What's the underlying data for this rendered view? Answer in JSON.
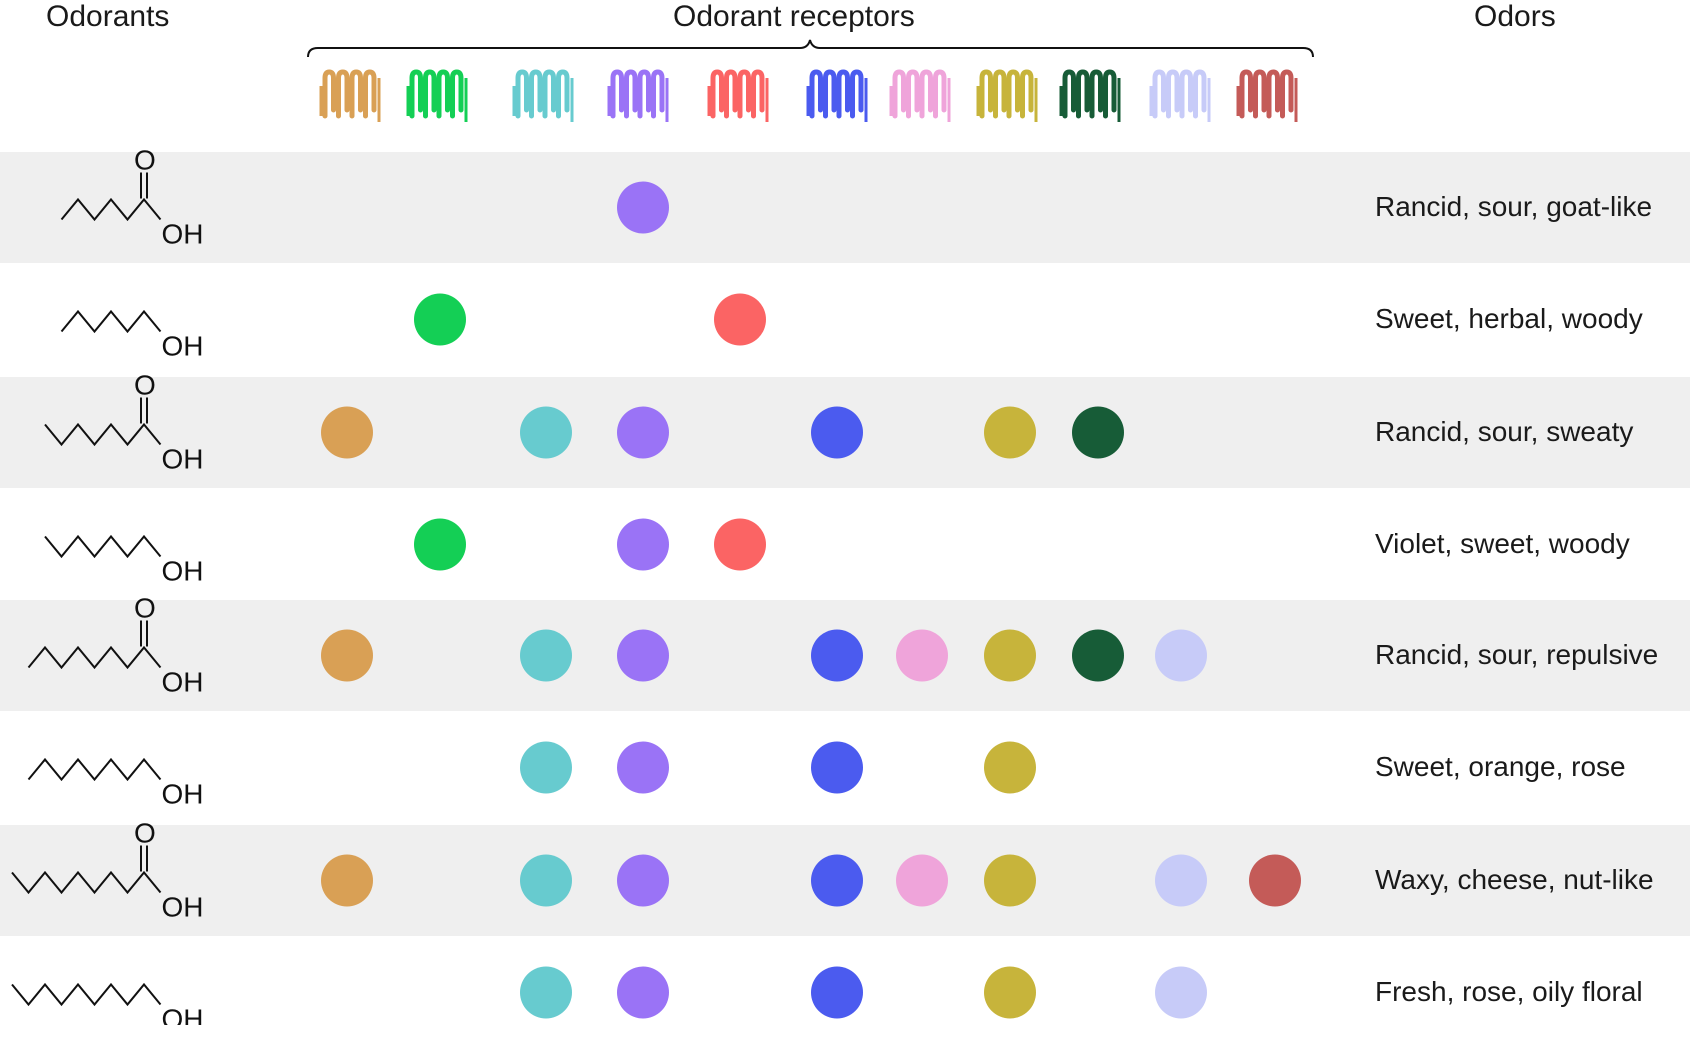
{
  "headers": {
    "odorants": "Odorants",
    "receptors": "Odorant receptors",
    "odors": "Odors"
  },
  "colors": {
    "row_shade": "#efefef",
    "receptors": [
      "#d9a055",
      "#14cf55",
      "#67cbcf",
      "#9a73f6",
      "#fb6464",
      "#4b5bef",
      "#efa4da",
      "#c7b43b",
      "#175c37",
      "#c7cbf8",
      "#c45b58"
    ]
  },
  "receptor_icons": [
    "receptor-icon-1",
    "receptor-icon-2",
    "receptor-icon-3",
    "receptor-icon-4",
    "receptor-icon-5",
    "receptor-icon-6",
    "receptor-icon-7",
    "receptor-icon-8",
    "receptor-icon-9",
    "receptor-icon-10",
    "receptor-icon-11"
  ],
  "rows": [
    {
      "molecule": {
        "type": "acid",
        "carbons": 6,
        "label": "OH",
        "carbonyl_label": "O"
      },
      "receptors": [
        4
      ],
      "odor": "Rancid, sour, goat-like",
      "shaded": true
    },
    {
      "molecule": {
        "type": "alcohol",
        "carbons": 6,
        "label": "OH"
      },
      "receptors": [
        2,
        5
      ],
      "odor": "Sweet, herbal, woody",
      "shaded": false
    },
    {
      "molecule": {
        "type": "acid",
        "carbons": 7,
        "label": "OH",
        "carbonyl_label": "O"
      },
      "receptors": [
        1,
        3,
        4,
        6,
        8,
        9
      ],
      "odor": "Rancid, sour, sweaty",
      "shaded": true
    },
    {
      "molecule": {
        "type": "alcohol",
        "carbons": 7,
        "label": "OH"
      },
      "receptors": [
        2,
        4,
        5
      ],
      "odor": "Violet, sweet, woody",
      "shaded": false
    },
    {
      "molecule": {
        "type": "acid",
        "carbons": 8,
        "label": "OH",
        "carbonyl_label": "O"
      },
      "receptors": [
        1,
        3,
        4,
        6,
        7,
        8,
        9,
        10
      ],
      "odor": "Rancid, sour, repulsive",
      "shaded": true
    },
    {
      "molecule": {
        "type": "alcohol",
        "carbons": 8,
        "label": "OH"
      },
      "receptors": [
        3,
        4,
        6,
        8
      ],
      "odor": "Sweet, orange, rose",
      "shaded": false
    },
    {
      "molecule": {
        "type": "acid",
        "carbons": 9,
        "label": "OH",
        "carbonyl_label": "O"
      },
      "receptors": [
        1,
        3,
        4,
        6,
        7,
        8,
        10,
        11
      ],
      "odor": "Waxy, cheese, nut-like",
      "shaded": true
    },
    {
      "molecule": {
        "type": "alcohol",
        "carbons": 9,
        "label": "OH"
      },
      "receptors": [
        3,
        4,
        6,
        8,
        10
      ],
      "odor": "Fresh, rose, oily floral",
      "shaded": false
    }
  ]
}
